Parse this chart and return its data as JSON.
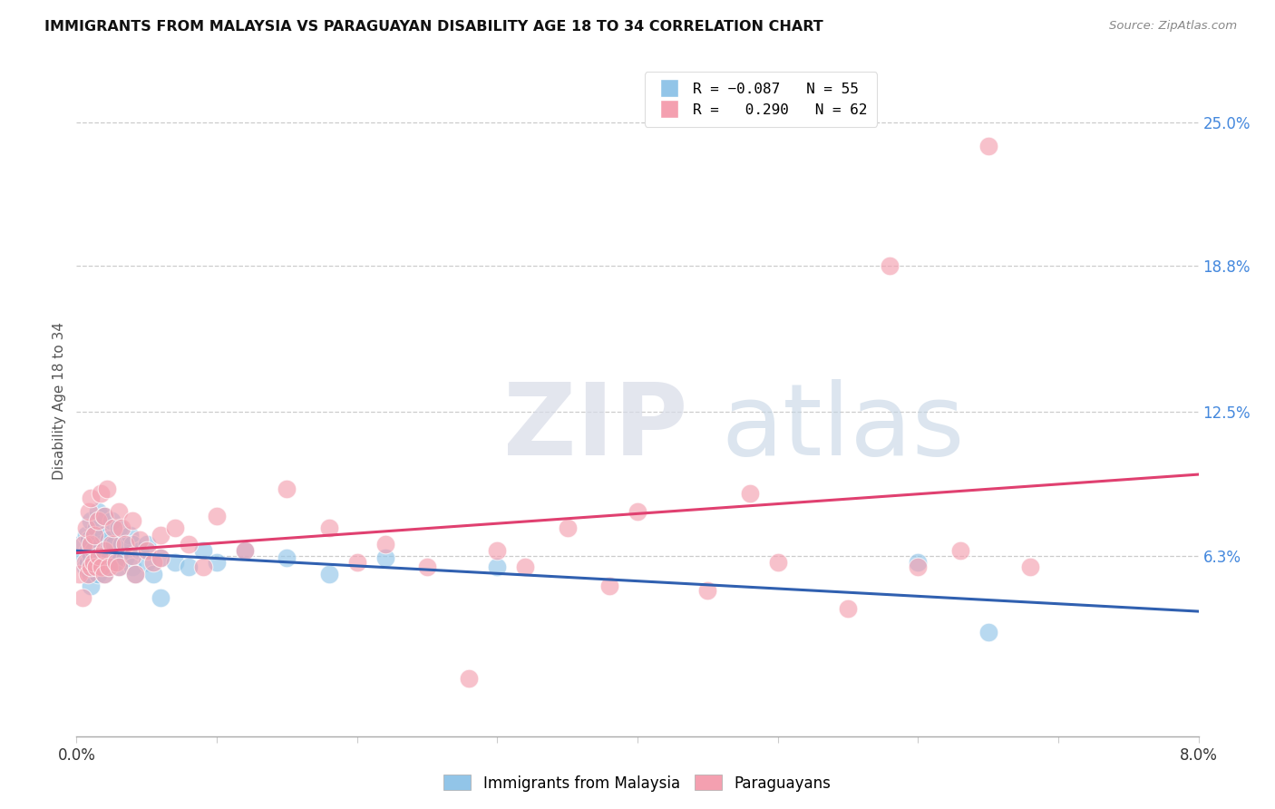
{
  "title": "IMMIGRANTS FROM MALAYSIA VS PARAGUAYAN DISABILITY AGE 18 TO 34 CORRELATION CHART",
  "source": "Source: ZipAtlas.com",
  "ylabel": "Disability Age 18 to 34",
  "ytick_labels": [
    "6.3%",
    "12.5%",
    "18.8%",
    "25.0%"
  ],
  "ytick_values": [
    0.063,
    0.125,
    0.188,
    0.25
  ],
  "xlim": [
    0.0,
    0.08
  ],
  "ylim": [
    -0.015,
    0.275
  ],
  "color_blue": "#92C5E8",
  "color_pink": "#F4A0B0",
  "trendline_blue": "#3060B0",
  "trendline_pink": "#E04070",
  "legend_label1": "Immigrants from Malaysia",
  "legend_label2": "Paraguayans",
  "blue_scatter_x": [
    0.0003,
    0.0005,
    0.0006,
    0.0007,
    0.0008,
    0.0008,
    0.0009,
    0.001,
    0.001,
    0.001,
    0.001,
    0.0012,
    0.0013,
    0.0014,
    0.0015,
    0.0015,
    0.0016,
    0.0017,
    0.0018,
    0.0019,
    0.002,
    0.002,
    0.002,
    0.0022,
    0.0023,
    0.0024,
    0.0025,
    0.0026,
    0.0027,
    0.003,
    0.003,
    0.003,
    0.0032,
    0.0035,
    0.0038,
    0.004,
    0.004,
    0.0042,
    0.0045,
    0.005,
    0.005,
    0.0055,
    0.006,
    0.006,
    0.007,
    0.008,
    0.009,
    0.01,
    0.012,
    0.015,
    0.018,
    0.022,
    0.03,
    0.06,
    0.065
  ],
  "blue_scatter_y": [
    0.068,
    0.063,
    0.058,
    0.072,
    0.06,
    0.065,
    0.07,
    0.055,
    0.063,
    0.078,
    0.05,
    0.065,
    0.06,
    0.075,
    0.055,
    0.082,
    0.06,
    0.058,
    0.068,
    0.072,
    0.065,
    0.08,
    0.055,
    0.058,
    0.07,
    0.062,
    0.078,
    0.06,
    0.068,
    0.063,
    0.075,
    0.058,
    0.068,
    0.062,
    0.072,
    0.058,
    0.068,
    0.055,
    0.065,
    0.06,
    0.068,
    0.055,
    0.062,
    0.045,
    0.06,
    0.058,
    0.065,
    0.06,
    0.065,
    0.062,
    0.055,
    0.062,
    0.058,
    0.06,
    0.03
  ],
  "pink_scatter_x": [
    0.0002,
    0.0004,
    0.0005,
    0.0006,
    0.0007,
    0.0008,
    0.0009,
    0.001,
    0.001,
    0.001,
    0.0012,
    0.0013,
    0.0014,
    0.0015,
    0.0016,
    0.0017,
    0.0018,
    0.002,
    0.002,
    0.002,
    0.0022,
    0.0023,
    0.0025,
    0.0026,
    0.0028,
    0.003,
    0.003,
    0.0032,
    0.0035,
    0.004,
    0.004,
    0.0042,
    0.0045,
    0.005,
    0.0055,
    0.006,
    0.006,
    0.007,
    0.008,
    0.009,
    0.01,
    0.012,
    0.015,
    0.018,
    0.02,
    0.022,
    0.025,
    0.028,
    0.03,
    0.032,
    0.035,
    0.038,
    0.04,
    0.045,
    0.048,
    0.05,
    0.055,
    0.058,
    0.06,
    0.063,
    0.065,
    0.068
  ],
  "pink_scatter_y": [
    0.055,
    0.045,
    0.068,
    0.06,
    0.075,
    0.055,
    0.082,
    0.058,
    0.068,
    0.088,
    0.06,
    0.072,
    0.058,
    0.078,
    0.063,
    0.09,
    0.058,
    0.065,
    0.08,
    0.055,
    0.092,
    0.058,
    0.068,
    0.075,
    0.06,
    0.082,
    0.058,
    0.075,
    0.068,
    0.063,
    0.078,
    0.055,
    0.07,
    0.065,
    0.06,
    0.072,
    0.062,
    0.075,
    0.068,
    0.058,
    0.08,
    0.065,
    0.092,
    0.075,
    0.06,
    0.068,
    0.058,
    0.01,
    0.065,
    0.058,
    0.075,
    0.05,
    0.082,
    0.048,
    0.09,
    0.06,
    0.04,
    0.188,
    0.058,
    0.065,
    0.24,
    0.058
  ]
}
